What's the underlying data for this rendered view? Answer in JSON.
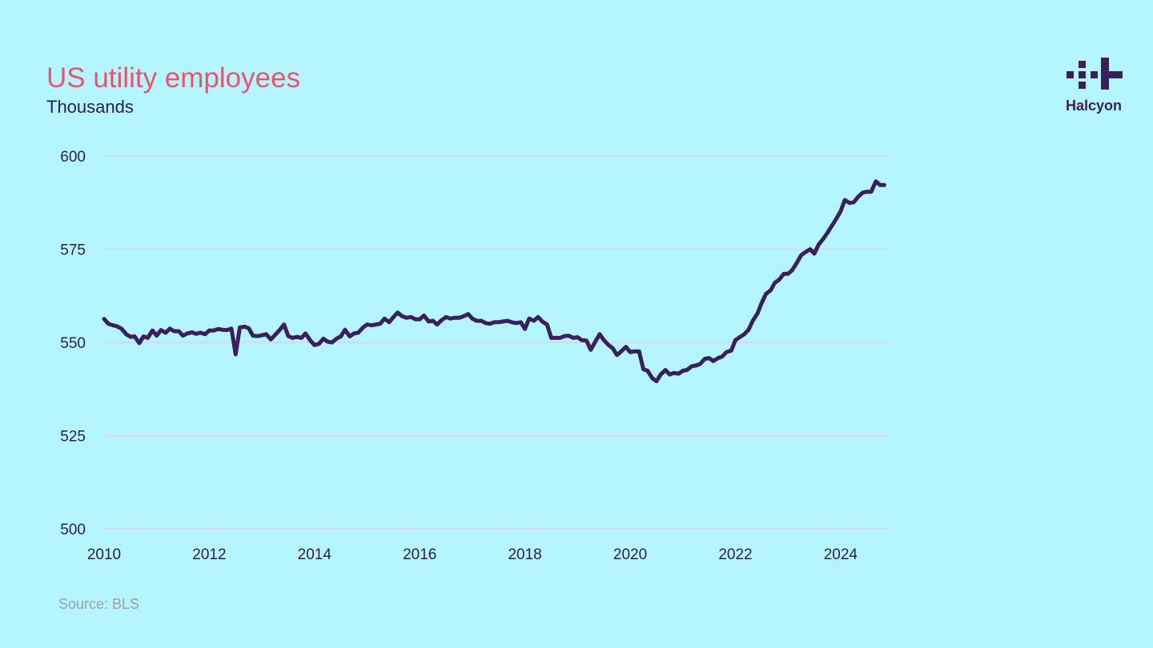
{
  "header": {
    "title": "US utility employees",
    "subtitle": "Thousands"
  },
  "logo": {
    "name": "Halcyon",
    "color": "#3b1f5c"
  },
  "footer": {
    "source": "Source: BLS"
  },
  "colors": {
    "background": "#b5f6fe",
    "title": "#e8566e",
    "line": "#3b1f5c",
    "grid": "#e7cfe0"
  },
  "chart_data": {
    "type": "line",
    "title": "US utility employees",
    "subtitle": "Thousands",
    "xlabel": "",
    "ylabel": "",
    "x_ticks": [
      "2010",
      "2012",
      "2014",
      "2016",
      "2018",
      "2020",
      "2022",
      "2024"
    ],
    "y_ticks": [
      "500",
      "525",
      "550",
      "575",
      "600"
    ],
    "xlim": [
      2010.0,
      2024.9
    ],
    "ylim": [
      500,
      600
    ],
    "grid": "horizontal",
    "legend": "none",
    "series": [
      {
        "points": [
          [
            2010.0,
            556.3
          ],
          [
            2010.08,
            555.0
          ],
          [
            2010.17,
            554.6
          ],
          [
            2010.25,
            554.3
          ],
          [
            2010.33,
            553.7
          ],
          [
            2010.42,
            552.2
          ],
          [
            2010.5,
            551.5
          ],
          [
            2010.58,
            551.6
          ],
          [
            2010.67,
            549.8
          ],
          [
            2010.75,
            551.6
          ],
          [
            2010.83,
            551.2
          ],
          [
            2010.92,
            553.2
          ],
          [
            2011.0,
            551.8
          ],
          [
            2011.08,
            553.3
          ],
          [
            2011.17,
            552.6
          ],
          [
            2011.25,
            553.7
          ],
          [
            2011.33,
            553.0
          ],
          [
            2011.42,
            553.0
          ],
          [
            2011.5,
            551.8
          ],
          [
            2011.58,
            552.4
          ],
          [
            2011.67,
            552.7
          ],
          [
            2011.75,
            552.3
          ],
          [
            2011.83,
            552.6
          ],
          [
            2011.92,
            552.2
          ],
          [
            2012.0,
            553.2
          ],
          [
            2012.08,
            553.2
          ],
          [
            2012.17,
            553.6
          ],
          [
            2012.25,
            553.4
          ],
          [
            2012.33,
            553.3
          ],
          [
            2012.42,
            553.7
          ],
          [
            2012.5,
            546.8
          ],
          [
            2012.58,
            554.0
          ],
          [
            2012.67,
            554.2
          ],
          [
            2012.75,
            553.8
          ],
          [
            2012.83,
            551.8
          ],
          [
            2012.92,
            551.7
          ],
          [
            2013.0,
            551.9
          ],
          [
            2013.08,
            552.2
          ],
          [
            2013.17,
            550.8
          ],
          [
            2013.25,
            552.0
          ],
          [
            2013.33,
            553.2
          ],
          [
            2013.42,
            554.8
          ],
          [
            2013.5,
            551.7
          ],
          [
            2013.58,
            551.2
          ],
          [
            2013.67,
            551.5
          ],
          [
            2013.75,
            551.2
          ],
          [
            2013.83,
            552.4
          ],
          [
            2013.92,
            550.5
          ],
          [
            2014.0,
            549.3
          ],
          [
            2014.08,
            549.6
          ],
          [
            2014.17,
            551.0
          ],
          [
            2014.25,
            550.2
          ],
          [
            2014.33,
            550.0
          ],
          [
            2014.42,
            551.0
          ],
          [
            2014.5,
            551.6
          ],
          [
            2014.58,
            553.4
          ],
          [
            2014.67,
            551.6
          ],
          [
            2014.75,
            552.4
          ],
          [
            2014.83,
            552.6
          ],
          [
            2014.92,
            554.0
          ],
          [
            2015.0,
            554.8
          ],
          [
            2015.08,
            554.6
          ],
          [
            2015.17,
            554.8
          ],
          [
            2015.25,
            555.0
          ],
          [
            2015.33,
            556.4
          ],
          [
            2015.42,
            555.4
          ],
          [
            2015.5,
            556.8
          ],
          [
            2015.58,
            558.0
          ],
          [
            2015.67,
            557.0
          ],
          [
            2015.75,
            556.6
          ],
          [
            2015.83,
            556.8
          ],
          [
            2015.92,
            556.2
          ],
          [
            2016.0,
            556.2
          ],
          [
            2016.08,
            557.2
          ],
          [
            2016.17,
            555.6
          ],
          [
            2016.25,
            555.8
          ],
          [
            2016.33,
            554.8
          ],
          [
            2016.42,
            556.0
          ],
          [
            2016.5,
            556.8
          ],
          [
            2016.58,
            556.4
          ],
          [
            2016.67,
            556.6
          ],
          [
            2016.75,
            556.6
          ],
          [
            2016.83,
            557.0
          ],
          [
            2016.92,
            557.6
          ],
          [
            2017.0,
            556.4
          ],
          [
            2017.08,
            555.8
          ],
          [
            2017.17,
            555.8
          ],
          [
            2017.25,
            555.2
          ],
          [
            2017.33,
            555.0
          ],
          [
            2017.42,
            555.4
          ],
          [
            2017.5,
            555.4
          ],
          [
            2017.58,
            555.6
          ],
          [
            2017.67,
            555.8
          ],
          [
            2017.75,
            555.4
          ],
          [
            2017.83,
            555.2
          ],
          [
            2017.92,
            555.4
          ],
          [
            2018.0,
            553.6
          ],
          [
            2018.08,
            556.4
          ],
          [
            2018.17,
            555.8
          ],
          [
            2018.25,
            556.8
          ],
          [
            2018.33,
            555.6
          ],
          [
            2018.42,
            554.8
          ],
          [
            2018.5,
            551.2
          ],
          [
            2018.58,
            551.2
          ],
          [
            2018.67,
            551.2
          ],
          [
            2018.75,
            551.7
          ],
          [
            2018.83,
            551.8
          ],
          [
            2018.92,
            551.2
          ],
          [
            2019.0,
            551.4
          ],
          [
            2019.08,
            550.6
          ],
          [
            2019.17,
            550.5
          ],
          [
            2019.25,
            548.0
          ],
          [
            2019.33,
            550.0
          ],
          [
            2019.42,
            552.2
          ],
          [
            2019.5,
            550.6
          ],
          [
            2019.58,
            549.4
          ],
          [
            2019.67,
            548.4
          ],
          [
            2019.75,
            546.6
          ],
          [
            2019.83,
            547.6
          ],
          [
            2019.92,
            548.8
          ],
          [
            2020.0,
            547.4
          ],
          [
            2020.08,
            547.6
          ],
          [
            2020.17,
            547.6
          ],
          [
            2020.25,
            542.8
          ],
          [
            2020.33,
            542.4
          ],
          [
            2020.42,
            540.4
          ],
          [
            2020.5,
            539.6
          ],
          [
            2020.58,
            541.4
          ],
          [
            2020.67,
            542.6
          ],
          [
            2020.75,
            541.4
          ],
          [
            2020.83,
            541.8
          ],
          [
            2020.92,
            541.6
          ],
          [
            2021.0,
            542.4
          ],
          [
            2021.08,
            542.6
          ],
          [
            2021.17,
            543.6
          ],
          [
            2021.25,
            543.8
          ],
          [
            2021.33,
            544.2
          ],
          [
            2021.42,
            545.6
          ],
          [
            2021.5,
            545.8
          ],
          [
            2021.58,
            545.0
          ],
          [
            2021.67,
            545.8
          ],
          [
            2021.75,
            546.2
          ],
          [
            2021.83,
            547.4
          ],
          [
            2021.92,
            547.8
          ],
          [
            2022.0,
            550.6
          ],
          [
            2022.08,
            551.4
          ],
          [
            2022.17,
            552.2
          ],
          [
            2022.25,
            553.4
          ],
          [
            2022.33,
            555.8
          ],
          [
            2022.42,
            557.8
          ],
          [
            2022.5,
            560.6
          ],
          [
            2022.58,
            563.0
          ],
          [
            2022.67,
            564.0
          ],
          [
            2022.75,
            566.0
          ],
          [
            2022.83,
            566.8
          ],
          [
            2022.92,
            568.4
          ],
          [
            2023.0,
            568.4
          ],
          [
            2023.08,
            569.4
          ],
          [
            2023.17,
            571.4
          ],
          [
            2023.25,
            573.4
          ],
          [
            2023.33,
            574.2
          ],
          [
            2023.42,
            575.0
          ],
          [
            2023.5,
            573.8
          ],
          [
            2023.58,
            576.2
          ],
          [
            2023.67,
            577.8
          ],
          [
            2023.75,
            579.4
          ],
          [
            2023.83,
            581.2
          ],
          [
            2023.92,
            583.2
          ],
          [
            2024.0,
            585.2
          ],
          [
            2024.08,
            588.2
          ],
          [
            2024.17,
            587.4
          ],
          [
            2024.25,
            587.6
          ],
          [
            2024.33,
            589.0
          ],
          [
            2024.42,
            590.2
          ],
          [
            2024.5,
            590.4
          ],
          [
            2024.58,
            590.4
          ],
          [
            2024.67,
            593.2
          ],
          [
            2024.75,
            592.2
          ],
          [
            2024.83,
            592.2
          ]
        ]
      }
    ]
  }
}
